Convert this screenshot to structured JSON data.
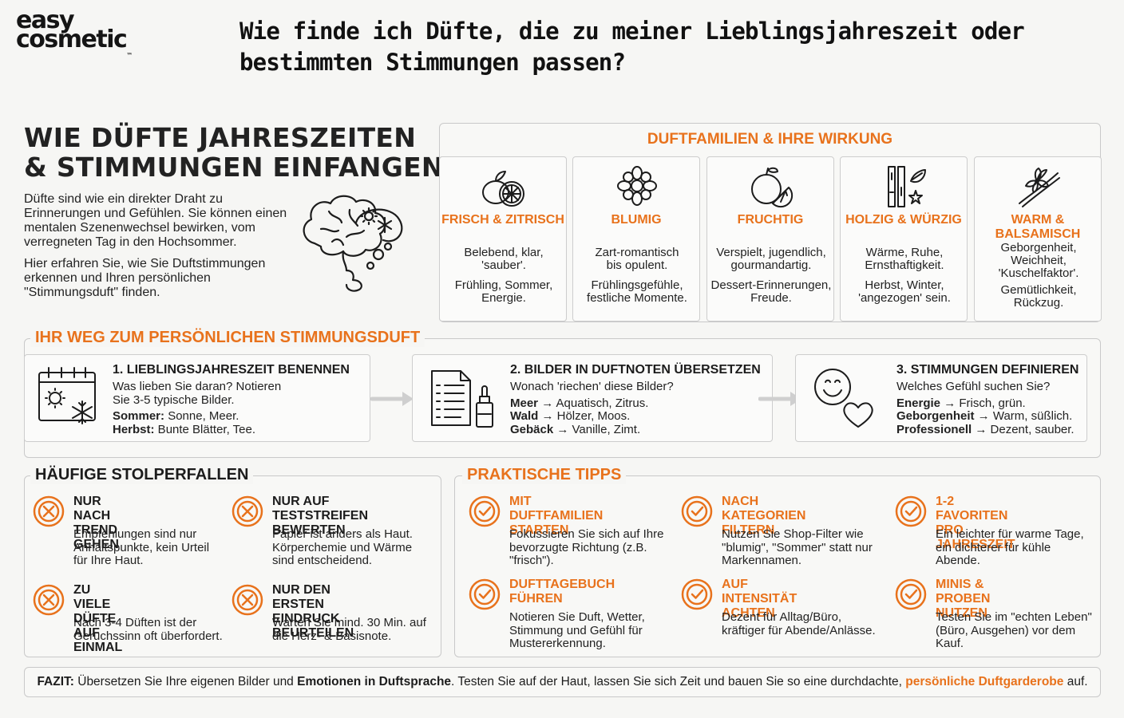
{
  "logo": {
    "line1": "easy",
    "line2": "cosmetic",
    "tm": "™"
  },
  "question": "Wie finde ich Düfte, die zu meiner Lieblingsjahreszeit oder bestimmten Stimmungen passen?",
  "hero": {
    "title_line1": "WIE DÜFTE JAHRESZEITEN",
    "title_line2": "& STIMMUNGEN EINFANGEN",
    "paragraph1": "Düfte sind wie ein direkter Draht zu Erinnerungen und Gefühlen. Sie können einen mentalen Szenenwechsel bewirken, vom verregneten Tag in den Hochsommer.",
    "paragraph2": "Hier erfahren Sie, wie Sie Duftstimmungen erkennen und Ihren persönlichen \"Stimmungsduft\" finden.",
    "icon": "brain-nose-icon"
  },
  "families": {
    "title": "DUFTFAMILIEN & IHRE WIRKUNG",
    "items": [
      {
        "name": "FRISCH & ZITRISCH",
        "desc": "Belebend, klar, 'sauber'.",
        "season": "Frühling, Sommer, Energie.",
        "icon": "citrus-icon"
      },
      {
        "name": "BLUMIG",
        "desc": "Zart-romantisch bis opulent.",
        "season": "Frühlingsgefühle, festliche Momente.",
        "icon": "flower-icon"
      },
      {
        "name": "FRUCHTIG",
        "desc": "Verspielt, jugendlich, gourmandartig.",
        "season": "Dessert-Erinnerungen, Freude.",
        "icon": "fruit-icon"
      },
      {
        "name": "HOLZIG & WÜRZIG",
        "desc": "Wärme, Ruhe, Ernsthaftigkeit.",
        "season": "Herbst, Winter, 'angezogen' sein.",
        "icon": "wood-spice-icon"
      },
      {
        "name": "WARM & BALSAMISCH",
        "desc": "Geborgenheit, Weichheit, 'Kuschelfaktor'.",
        "season": "Gemütlichkeit, Rückzug.",
        "icon": "vanilla-icon"
      }
    ]
  },
  "way": {
    "title": "IHR WEG ZUM PERSÖNLICHEN STIMMUNGSDUFT",
    "steps": [
      {
        "title": "1. LIEBLINGSJAHRESZEIT BENENNEN",
        "line1": "Was lieben Sie daran? Notieren",
        "line2": "Sie 3-5 typische Bilder.",
        "k1": "Sommer:",
        "v1": " Sonne, Meer.",
        "k2": "Herbst:",
        "v2": " Bunte Blätter, Tee.",
        "icon": "calendar-season-icon"
      },
      {
        "title": "2. BILDER IN DUFTNOTEN ÜBERSETZEN",
        "line1": "Wonach 'riechen' diese Bilder?",
        "k1": "Meer",
        "v1": " → Aquatisch, Zitrus.",
        "k2": "Wald",
        "v2": " → Hölzer, Moos.",
        "k3": "Gebäck",
        "v3": " → Vanille, Zimt.",
        "icon": "document-bottle-icon"
      },
      {
        "title": "3. STIMMUNGEN DEFINIEREN",
        "line1": "Welches Gefühl suchen Sie?",
        "k1": "Energie",
        "v1": " → Frisch, grün.",
        "k2": "Geborgenheit",
        "v2": " → Warm, süßlich.",
        "k3": "Professionell",
        "v3": " → Dezent, sauber.",
        "icon": "smiley-heart-icon"
      }
    ]
  },
  "pitfalls": {
    "title": "HÄUFIGE STOLPERFALLEN",
    "items": [
      {
        "t1": "NUR NACH TREND",
        "t2": "GEHEN",
        "l1": "Empfehlungen sind nur",
        "l2": "Anhaltspunkte, kein Urteil",
        "l3": "für Ihre Haut."
      },
      {
        "t1": "NUR AUF TESTSTREIFEN",
        "t2": "BEWERTEN",
        "l1": "Papier ist anders als Haut.",
        "l2": "Körperchemie und Wärme",
        "l3": "sind entscheidend."
      },
      {
        "t1": "ZU VIELE DÜFTE",
        "t2": "AUF EINMAL",
        "l1": "Nach 3-4 Düften ist der",
        "l2": "Geruchssinn oft überfordert.",
        "l3": ""
      },
      {
        "t1": "NUR DEN ERSTEN",
        "t2": "EINDRUCK BEURTEILEN",
        "l1": "Warten Sie mind. 30 Min. auf",
        "l2": "die Herz- & Basisnote.",
        "l3": ""
      }
    ]
  },
  "tips": {
    "title": "PRAKTISCHE TIPPS",
    "items": [
      {
        "t1": "MIT DUFTFAMILIEN",
        "t2": "STARTEN",
        "l1": "Fokussieren Sie sich auf Ihre",
        "l2": "bevorzugte Richtung (z.B.",
        "l3": "\"frisch\")."
      },
      {
        "t1": "NACH KATEGORIEN",
        "t2": "FILTERN",
        "l1": "Nutzen Sie Shop-Filter wie",
        "l2": "\"blumig\", \"Sommer\" statt nur",
        "l3": "Markennamen."
      },
      {
        "t1": "1-2 FAVORITEN",
        "t2": "PRO JAHRESZEIT",
        "l1": "Ein leichter für warme Tage,",
        "l2": "ein dichterer für kühle",
        "l3": "Abende."
      },
      {
        "t1": "DUFTTAGEBUCH",
        "t2": "FÜHREN",
        "l1": "Notieren Sie Duft, Wetter,",
        "l2": "Stimmung und Gefühl für",
        "l3": "Mustererkennung."
      },
      {
        "t1": "AUF INTENSITÄT",
        "t2": "ACHTEN",
        "l1": "Dezent für Alltag/Büro,",
        "l2": "kräftiger für Abende/Anlässe.",
        "l3": ""
      },
      {
        "t1": "MINIS & PROBEN",
        "t2": "NUTZEN",
        "l1": "Testen Sie im \"echten Leben\"",
        "l2": "(Büro, Ausgehen) vor dem",
        "l3": "Kauf."
      }
    ]
  },
  "fazit": {
    "label": "FAZIT:",
    "part1": " Übersetzen Sie Ihre eigenen Bilder und ",
    "bold": "Emotionen in Duftsprache",
    "part2": ". Testen Sie auf der Haut, lassen Sie sich Zeit und bauen Sie so eine durchdachte, ",
    "highlight": "persönliche Duftgarderobe",
    "part3": " auf."
  },
  "colors": {
    "accent": "#e8721c",
    "text": "#1c1c1c",
    "border": "#c9c9c9",
    "background": "#f6f6f4"
  }
}
